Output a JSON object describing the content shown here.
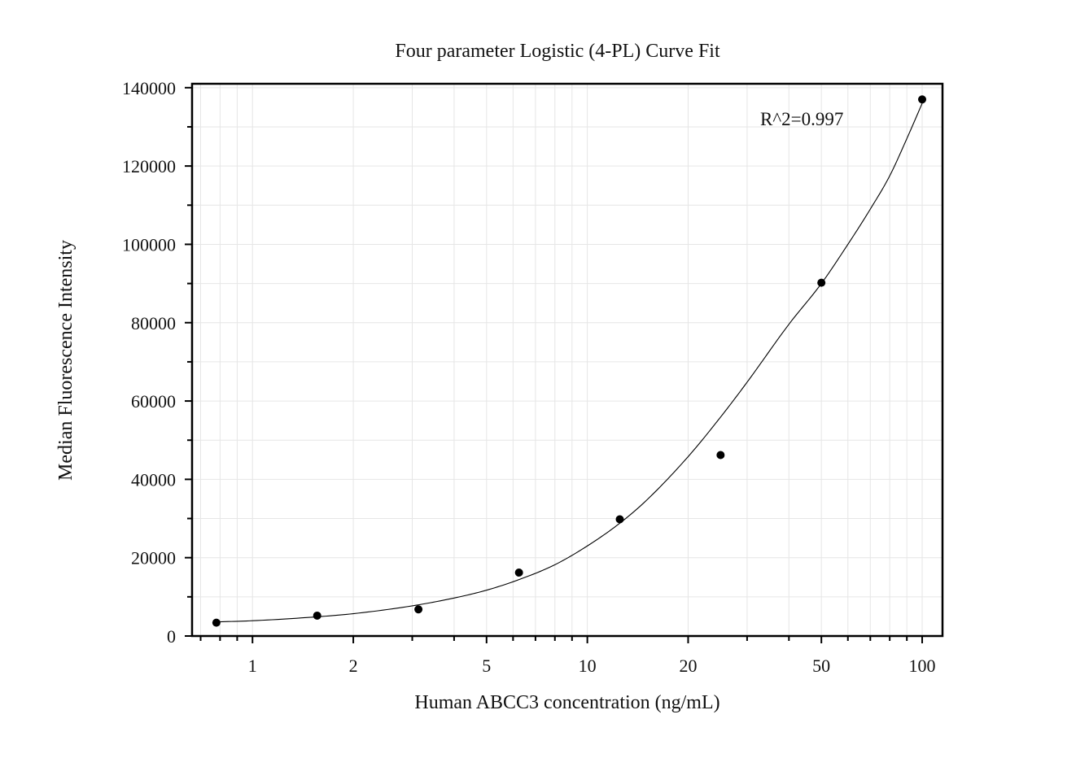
{
  "chart_data": {
    "type": "scatter",
    "title": "Four parameter Logistic (4-PL) Curve Fit",
    "xlabel": "Human ABCC3 concentration (ng/mL)",
    "ylabel": "Median Fluorescence Intensity",
    "x_scale": "log",
    "xlim": [
      0.66,
      115
    ],
    "ylim": [
      0,
      141000
    ],
    "x_ticks": [
      1,
      2,
      5,
      10,
      20,
      50,
      100
    ],
    "x_tick_labels": [
      "1",
      "2",
      "5",
      "10",
      "20",
      "50",
      "100"
    ],
    "y_ticks": [
      0,
      20000,
      40000,
      60000,
      80000,
      100000,
      120000,
      140000
    ],
    "y_tick_labels": [
      "0",
      "20000",
      "40000",
      "60000",
      "80000",
      "100000",
      "120000",
      "140000"
    ],
    "grid": true,
    "annotation": "R^2=0.997",
    "series": [
      {
        "x": [
          0.78,
          1.56,
          3.13,
          6.25,
          12.5,
          25,
          50,
          100
        ],
        "y": [
          3400,
          5200,
          6800,
          16200,
          29800,
          46200,
          90200,
          137000
        ]
      }
    ],
    "fit_curve": {
      "model": "4PL",
      "x": [
        0.78,
        1,
        1.5,
        2,
        3,
        4,
        5,
        6.25,
        8,
        10,
        12.5,
        15,
        20,
        25,
        30,
        40,
        50,
        60,
        70,
        80,
        90,
        100
      ],
      "y": [
        3600,
        3900,
        4800,
        5700,
        7700,
        9700,
        11700,
        14400,
        18200,
        23000,
        28800,
        34600,
        45800,
        55900,
        64800,
        79600,
        90000,
        100000,
        109000,
        117500,
        127000,
        136000
      ]
    },
    "colors": {
      "points": "#000000",
      "curve": "#000000",
      "grid": "#e6e6e6",
      "frame": "#000000"
    }
  }
}
